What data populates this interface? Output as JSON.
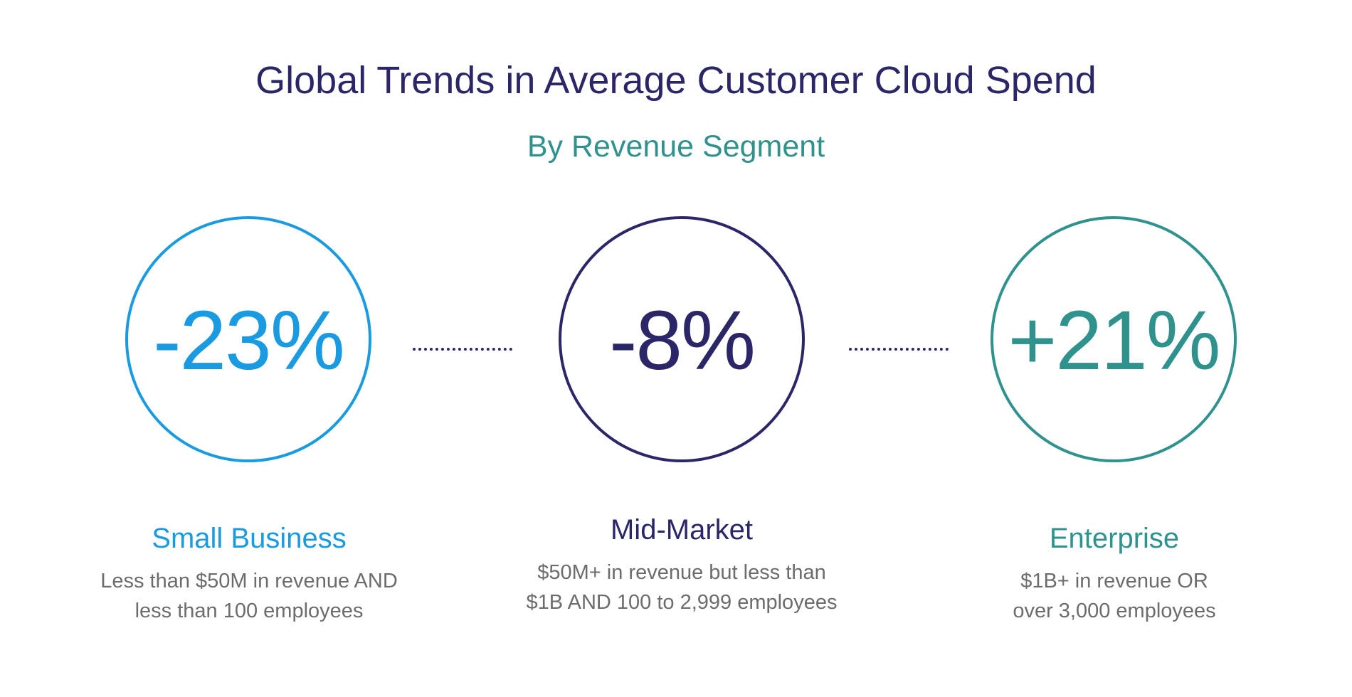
{
  "title": "Global Trends in Average Customer Cloud Spend",
  "subtitle": "By Revenue Segment",
  "colors": {
    "title": "#2a2668",
    "subtitle": "#2f928c",
    "small_business": "#1a9ae0",
    "mid_market": "#2a2668",
    "enterprise": "#2f928c",
    "description": "#6c6c6c",
    "connector": "#2a2668"
  },
  "segments": [
    {
      "value_label": "-23%",
      "name": "Small Business",
      "description_line1": "Less than $50M in revenue AND",
      "description_line2": "less than 100 employees"
    },
    {
      "value_label": "-8%",
      "name": "Mid-Market",
      "description_line1": "$50M+ in revenue but less than",
      "description_line2": "$1B AND 100 to 2,999 employees"
    },
    {
      "value_label": "+21%",
      "name": "Enterprise",
      "description_line1": "$1B+ in revenue OR",
      "description_line2": "over 3,000 employees"
    }
  ],
  "chart_data": {
    "type": "table",
    "title": "Global Trends in Average Customer Cloud Spend",
    "subtitle": "By Revenue Segment",
    "categories": [
      "Small Business",
      "Mid-Market",
      "Enterprise"
    ],
    "values": [
      -23,
      -8,
      21
    ],
    "unit": "%"
  }
}
